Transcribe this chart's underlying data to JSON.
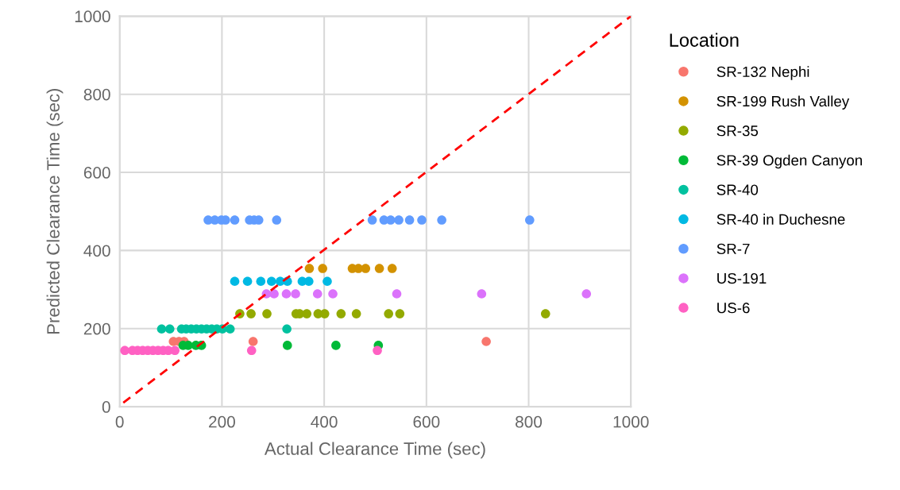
{
  "chart_data": {
    "type": "scatter",
    "xlabel": "Actual Clearance Time (sec)",
    "ylabel": "Predicted Clearance Time (sec)",
    "legend_title": "Location",
    "xlim": [
      0,
      1000
    ],
    "ylim": [
      0,
      1000
    ],
    "xticks": [
      0,
      200,
      400,
      600,
      800,
      1000
    ],
    "yticks": [
      0,
      200,
      400,
      600,
      800,
      1000
    ],
    "grid": true,
    "legend": "right",
    "marker": "circle",
    "series": [
      {
        "name": "SR-132 Nephi",
        "color": "#f8766d",
        "x": [
          105,
          116,
          126,
          261,
          717
        ],
        "values": [
          167,
          167,
          167,
          167,
          167
        ]
      },
      {
        "name": "SR-199 Rush Valley",
        "color": "#d39200",
        "x": [
          371,
          397,
          455,
          467,
          481,
          508,
          533
        ],
        "values": [
          354,
          354,
          354,
          354,
          354,
          354,
          354
        ]
      },
      {
        "name": "SR-35",
        "color": "#93aa00",
        "x": [
          235,
          257,
          288,
          345,
          352,
          366,
          388,
          401,
          433,
          463,
          526,
          548,
          833
        ],
        "values": [
          238,
          238,
          238,
          238,
          238,
          238,
          238,
          238,
          238,
          238,
          238,
          238,
          238
        ]
      },
      {
        "name": "SR-39 Ogden Canyon",
        "color": "#00ba38",
        "x": [
          124,
          134,
          149,
          160,
          328,
          423,
          506
        ],
        "values": [
          157,
          157,
          157,
          157,
          157,
          157,
          157
        ]
      },
      {
        "name": "SR-40",
        "color": "#00c19f",
        "x": [
          82,
          98,
          121,
          130,
          140,
          150,
          160,
          170,
          180,
          190,
          201,
          216,
          327
        ],
        "values": [
          199,
          199,
          199,
          199,
          199,
          199,
          199,
          199,
          199,
          199,
          199,
          199,
          199
        ]
      },
      {
        "name": "SR-40 in Duchesne",
        "color": "#00b9e3",
        "x": [
          225,
          250,
          276,
          297,
          314,
          328,
          357,
          370,
          406
        ],
        "values": [
          321,
          321,
          321,
          321,
          321,
          321,
          321,
          321,
          321
        ]
      },
      {
        "name": "SR-7",
        "color": "#619cff",
        "x": [
          173,
          186,
          199,
          207,
          225,
          254,
          263,
          272,
          307,
          494,
          517,
          530,
          546,
          567,
          591,
          630,
          802
        ],
        "values": [
          478,
          478,
          478,
          478,
          478,
          478,
          478,
          478,
          478,
          478,
          478,
          478,
          478,
          478,
          478,
          478,
          478
        ]
      },
      {
        "name": "US-191",
        "color": "#db72fb",
        "x": [
          287,
          302,
          326,
          344,
          387,
          417,
          542,
          708,
          913
        ],
        "values": [
          289,
          289,
          289,
          289,
          289,
          289,
          289,
          289,
          289
        ]
      },
      {
        "name": "US-6",
        "color": "#ff61c3",
        "x": [
          10,
          25,
          35,
          45,
          55,
          65,
          75,
          85,
          95,
          108,
          258,
          504
        ],
        "values": [
          144,
          144,
          144,
          144,
          144,
          144,
          144,
          144,
          144,
          144,
          144,
          144
        ]
      },
      {
        "type": "line",
        "color": "#ff0000",
        "line_style": "dashed",
        "marker": "none",
        "x": [
          7,
          1000
        ],
        "values": [
          10,
          1000
        ]
      }
    ]
  }
}
